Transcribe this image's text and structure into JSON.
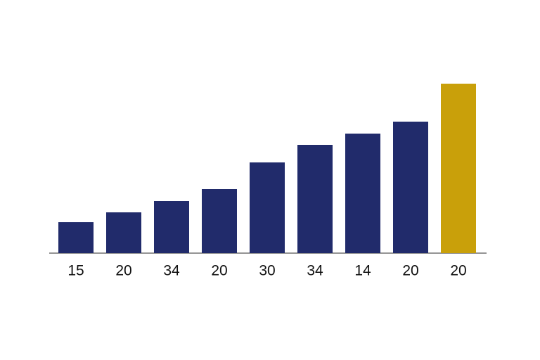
{
  "chart_data": {
    "type": "bar",
    "categories": [
      "15",
      "20",
      "34",
      "20",
      "30",
      "34",
      "14",
      "20",
      "20"
    ],
    "values": [
      44,
      58,
      74,
      91,
      129,
      154,
      170,
      187,
      241
    ],
    "colors": [
      "#212b6b",
      "#212b6b",
      "#212b6b",
      "#212b6b",
      "#212b6b",
      "#212b6b",
      "#212b6b",
      "#212b6b",
      "#c9a00a"
    ],
    "ylim": [
      0,
      250
    ]
  }
}
